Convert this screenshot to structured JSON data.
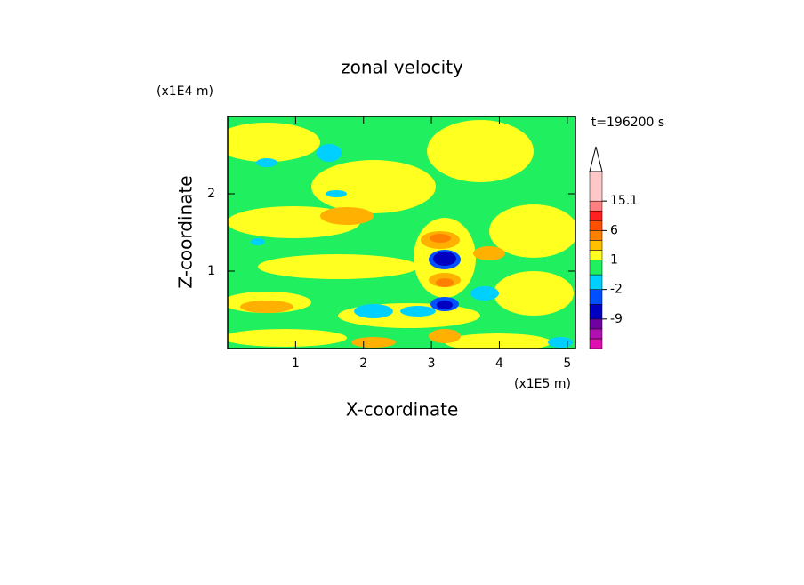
{
  "chart_data": {
    "type": "contour",
    "title": "zonal velocity",
    "x_label": "X-coordinate",
    "y_label": "Z-coordinate",
    "x_unit": "(x1E5 m)",
    "y_unit": "(x1E4 m)",
    "time_label": "t=196200 s",
    "xlim": [
      0,
      5.12
    ],
    "ylim": [
      0,
      3
    ],
    "xticks": [
      1,
      2,
      3,
      4,
      5
    ],
    "yticks": [
      1,
      2
    ],
    "colorbar": {
      "levels": [
        -9,
        -2,
        1,
        6,
        15.1
      ],
      "bands": [
        [
          "#e010b0",
          "#b010b0",
          "#7000a0"
        ],
        [
          "#0000c0",
          "#0050ff"
        ],
        [
          "#00d0ff",
          "#20f060"
        ],
        [
          "#ffff20",
          "#ffc000",
          "#ff8000"
        ],
        [
          "#ff5000",
          "#ff2020",
          "#ff8080"
        ],
        [
          "#ffc8c8"
        ]
      ]
    }
  }
}
